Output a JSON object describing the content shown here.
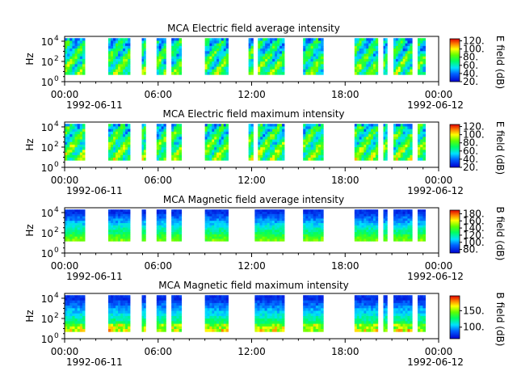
{
  "figure": {
    "date_start": "1992-06-11",
    "date_end": "1992-06-12",
    "x_ticks": [
      "00:00",
      "06:00",
      "12:00",
      "18:00",
      "00:00"
    ]
  },
  "chart_data": [
    {
      "type": "heatmap",
      "title": "MCA  Electric field average intensity",
      "ylabel": "Hz",
      "yscale": "log",
      "ylim": [
        1,
        30000
      ],
      "y_ticks": [
        "10",
        "10",
        "10"
      ],
      "y_tick_exp": [
        "0",
        "2",
        "4"
      ],
      "xlim": [
        "1992-06-11T00:00",
        "1992-06-12T00:00"
      ],
      "colorbar": {
        "label": "E field (dB)",
        "ticks": [
          "20.",
          "40.",
          "60.",
          "80.",
          "100.",
          "120."
        ],
        "range": [
          20,
          125
        ]
      },
      "data_segments_hours": [
        [
          0.0,
          1.3
        ],
        [
          2.8,
          4.2
        ],
        [
          4.95,
          5.2
        ],
        [
          5.9,
          6.5
        ],
        [
          6.85,
          7.5
        ],
        [
          9.0,
          10.5
        ],
        [
          11.8,
          12.1
        ],
        [
          12.4,
          14.1
        ],
        [
          15.3,
          16.6
        ],
        [
          18.6,
          20.1
        ],
        [
          20.45,
          20.7
        ],
        [
          21.1,
          22.3
        ],
        [
          22.65,
          23.15
        ]
      ],
      "intensity_profile": "high (yellow/orange) in lower bands, mixed green/cyan, occasional blue at top"
    },
    {
      "type": "heatmap",
      "title": "MCA  Electric field maximum intensity",
      "ylabel": "Hz",
      "yscale": "log",
      "ylim": [
        1,
        30000
      ],
      "y_ticks": [
        "10",
        "10",
        "10"
      ],
      "y_tick_exp": [
        "0",
        "2",
        "4"
      ],
      "xlim": [
        "1992-06-11T00:00",
        "1992-06-12T00:00"
      ],
      "colorbar": {
        "label": "E field (dB)",
        "ticks": [
          "20.",
          "40.",
          "60.",
          "80.",
          "100.",
          "120."
        ],
        "range": [
          20,
          125
        ]
      },
      "data_segments_hours": [
        [
          0.0,
          1.3
        ],
        [
          2.8,
          4.2
        ],
        [
          4.95,
          5.2
        ],
        [
          5.9,
          6.5
        ],
        [
          6.85,
          7.5
        ],
        [
          9.0,
          10.5
        ],
        [
          11.8,
          12.1
        ],
        [
          12.4,
          14.1
        ],
        [
          15.3,
          16.6
        ],
        [
          18.6,
          20.1
        ],
        [
          20.45,
          20.7
        ],
        [
          21.1,
          22.3
        ],
        [
          22.65,
          23.15
        ]
      ],
      "intensity_profile": "similar to average, slightly stronger"
    },
    {
      "type": "heatmap",
      "title": "MCA  Magnetic field average intensity",
      "ylabel": "Hz",
      "yscale": "log",
      "ylim": [
        1,
        30000
      ],
      "y_ticks": [
        "10",
        "10",
        "10"
      ],
      "y_tick_exp": [
        "0",
        "2",
        "4"
      ],
      "xlim": [
        "1992-06-11T00:00",
        "1992-06-12T00:00"
      ],
      "colorbar": {
        "label": "B field (dB)",
        "ticks": [
          "80.",
          "100.",
          "120.",
          "140.",
          "160.",
          "180."
        ],
        "range": [
          70,
          190
        ]
      },
      "data_segments_hours": [
        [
          0.0,
          1.3
        ],
        [
          2.8,
          4.2
        ],
        [
          4.95,
          5.2
        ],
        [
          5.9,
          6.5
        ],
        [
          6.85,
          7.5
        ],
        [
          9.0,
          10.5
        ],
        [
          12.2,
          14.1
        ],
        [
          15.3,
          16.6
        ],
        [
          18.6,
          20.1
        ],
        [
          20.45,
          20.7
        ],
        [
          21.1,
          22.3
        ],
        [
          22.65,
          23.15
        ]
      ],
      "intensity_profile": "blue at high frequencies, cyan/green mid, green with some yellow at low frequencies"
    },
    {
      "type": "heatmap",
      "title": "MCA  Magnetic field maximum intensity",
      "ylabel": "Hz",
      "yscale": "log",
      "ylim": [
        1,
        30000
      ],
      "y_ticks": [
        "10",
        "10",
        "10"
      ],
      "y_tick_exp": [
        "0",
        "2",
        "4"
      ],
      "xlim": [
        "1992-06-11T00:00",
        "1992-06-12T00:00"
      ],
      "colorbar": {
        "label": "B field (dB)",
        "ticks": [
          "100.",
          "150."
        ],
        "range": [
          65,
          195
        ]
      },
      "data_segments_hours": [
        [
          0.0,
          1.3
        ],
        [
          2.8,
          4.2
        ],
        [
          4.95,
          5.2
        ],
        [
          5.9,
          6.5
        ],
        [
          6.85,
          7.5
        ],
        [
          9.0,
          10.5
        ],
        [
          12.2,
          14.1
        ],
        [
          15.3,
          16.6
        ],
        [
          18.6,
          20.1
        ],
        [
          20.45,
          20.7
        ],
        [
          21.1,
          22.3
        ],
        [
          22.65,
          23.15
        ]
      ],
      "intensity_profile": "blue at top, green/cyan bulk, yellow/orange near bottom"
    }
  ]
}
